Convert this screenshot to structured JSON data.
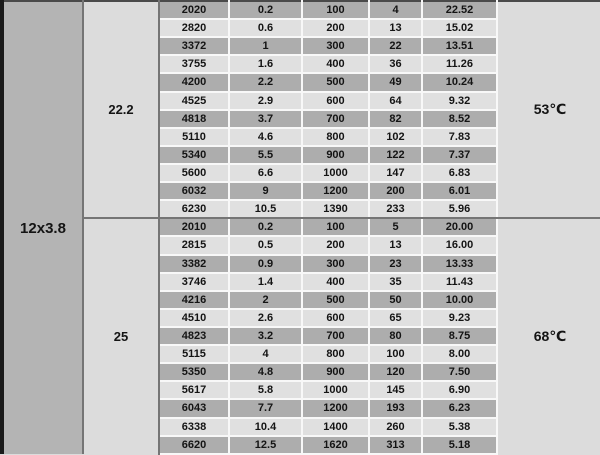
{
  "table": {
    "group_label": "12x3.8",
    "sections": [
      {
        "label": "22.2",
        "temperature": "53℃",
        "rows": [
          [
            "2020",
            "0.2",
            "100",
            "4",
            "22.52"
          ],
          [
            "2820",
            "0.6",
            "200",
            "13",
            "15.02"
          ],
          [
            "3372",
            "1",
            "300",
            "22",
            "13.51"
          ],
          [
            "3755",
            "1.6",
            "400",
            "36",
            "11.26"
          ],
          [
            "4200",
            "2.2",
            "500",
            "49",
            "10.24"
          ],
          [
            "4525",
            "2.9",
            "600",
            "64",
            "9.32"
          ],
          [
            "4818",
            "3.7",
            "700",
            "82",
            "8.52"
          ],
          [
            "5110",
            "4.6",
            "800",
            "102",
            "7.83"
          ],
          [
            "5340",
            "5.5",
            "900",
            "122",
            "7.37"
          ],
          [
            "5600",
            "6.6",
            "1000",
            "147",
            "6.83"
          ],
          [
            "6032",
            "9",
            "1200",
            "200",
            "6.01"
          ],
          [
            "6230",
            "10.5",
            "1390",
            "233",
            "5.96"
          ]
        ]
      },
      {
        "label": "25",
        "temperature": "68℃",
        "rows": [
          [
            "2010",
            "0.2",
            "100",
            "5",
            "20.00"
          ],
          [
            "2815",
            "0.5",
            "200",
            "13",
            "16.00"
          ],
          [
            "3382",
            "0.9",
            "300",
            "23",
            "13.33"
          ],
          [
            "3746",
            "1.4",
            "400",
            "35",
            "11.43"
          ],
          [
            "4216",
            "2",
            "500",
            "50",
            "10.00"
          ],
          [
            "4510",
            "2.6",
            "600",
            "65",
            "9.23"
          ],
          [
            "4823",
            "3.2",
            "700",
            "80",
            "8.75"
          ],
          [
            "5115",
            "4",
            "800",
            "100",
            "8.00"
          ],
          [
            "5350",
            "4.8",
            "900",
            "120",
            "7.50"
          ],
          [
            "5617",
            "5.8",
            "1000",
            "145",
            "6.90"
          ],
          [
            "6043",
            "7.7",
            "1200",
            "193",
            "6.23"
          ],
          [
            "6338",
            "10.4",
            "1400",
            "260",
            "5.38"
          ],
          [
            "6620",
            "12.5",
            "1620",
            "313",
            "5.18"
          ]
        ]
      }
    ]
  },
  "colors": {
    "row_dark": "#adadad",
    "row_light": "#e0e0e0",
    "panel": "#dcdcdc",
    "group": "#b4b4b4",
    "sep": "#f8f8f8",
    "divider": "#757575",
    "edge": "#1a1a1a",
    "text": "#141414"
  }
}
